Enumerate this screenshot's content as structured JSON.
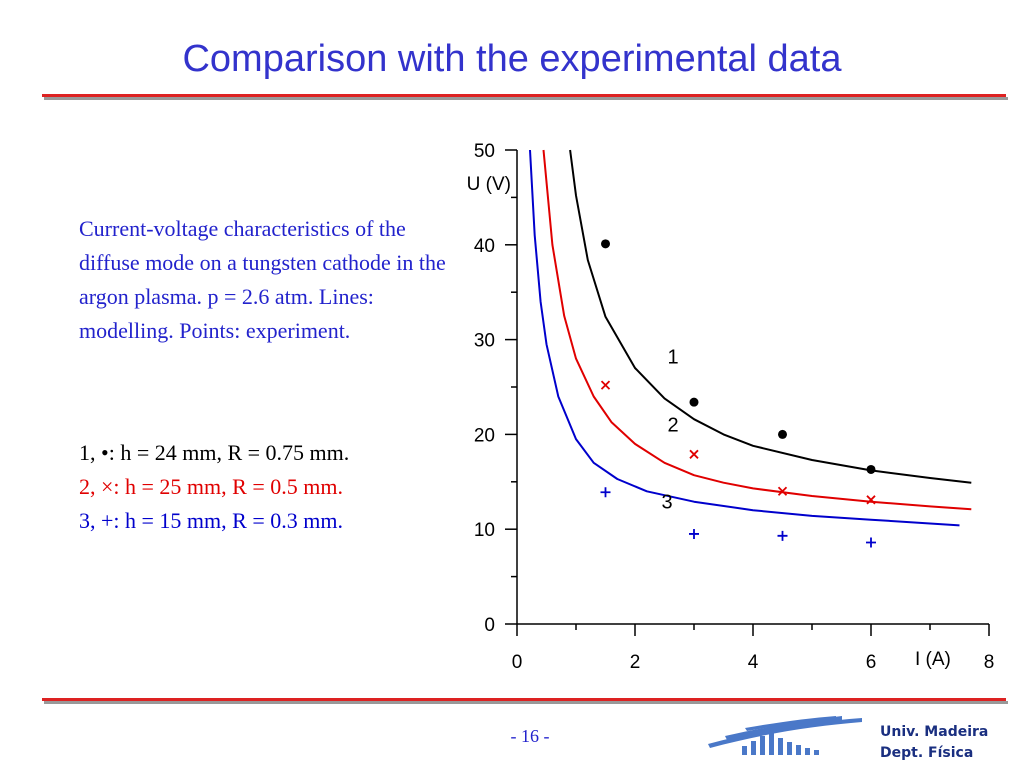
{
  "slide": {
    "title": "Comparison with the experimental data",
    "description": "Current-voltage characteristics of the diffuse mode on a tungsten cathode in the argon plasma. p = 2.6 atm. Lines: modelling. Points: experiment.",
    "legend": [
      {
        "text": "1, •:  h = 24 mm, R = 0.75 mm.",
        "color": "#000000"
      },
      {
        "text": "2, ×:  h = 25 mm, R = 0.5 mm.",
        "color": "#e00000"
      },
      {
        "text": "3, +:  h = 15 mm, R = 0.3 mm.",
        "color": "#0000cc"
      }
    ],
    "page_number": "- 16 -"
  },
  "footer": {
    "institution_line1": "Univ. Madeira",
    "institution_line2": "Dept. Física"
  },
  "colors": {
    "title": "#3333cc",
    "rule": "#dd2222",
    "series_1": "#000000",
    "series_2": "#e00000",
    "series_3": "#0000cc"
  },
  "chart_data": {
    "type": "line",
    "xlabel": "I (A)",
    "ylabel": "U (V)",
    "xlim": [
      0,
      8
    ],
    "ylim": [
      0,
      50
    ],
    "xticks": [
      0,
      2,
      4,
      6,
      8
    ],
    "yticks": [
      0,
      10,
      20,
      30,
      40,
      50
    ],
    "grid": false,
    "series": [
      {
        "name": "1",
        "color": "#000000",
        "marker": "dot",
        "line": [
          [
            0.9,
            50
          ],
          [
            1.0,
            45.2
          ],
          [
            1.2,
            38.4
          ],
          [
            1.5,
            32.4
          ],
          [
            2.0,
            27.0
          ],
          [
            2.5,
            23.8
          ],
          [
            3.0,
            21.6
          ],
          [
            3.5,
            20.0
          ],
          [
            4.0,
            18.8
          ],
          [
            5.0,
            17.3
          ],
          [
            6.0,
            16.2
          ],
          [
            7.0,
            15.4
          ],
          [
            7.7,
            14.9
          ]
        ],
        "points": [
          [
            1.5,
            40.1
          ],
          [
            3.0,
            23.4
          ],
          [
            4.5,
            20.0
          ],
          [
            6.0,
            16.3
          ]
        ]
      },
      {
        "name": "2",
        "color": "#e00000",
        "marker": "cross",
        "line": [
          [
            0.45,
            50
          ],
          [
            0.6,
            40.0
          ],
          [
            0.8,
            32.5
          ],
          [
            1.0,
            28.0
          ],
          [
            1.3,
            24.0
          ],
          [
            1.6,
            21.3
          ],
          [
            2.0,
            19.0
          ],
          [
            2.5,
            17.0
          ],
          [
            3.0,
            15.7
          ],
          [
            3.5,
            14.9
          ],
          [
            4.0,
            14.3
          ],
          [
            5.0,
            13.5
          ],
          [
            6.0,
            12.9
          ],
          [
            7.0,
            12.4
          ],
          [
            7.7,
            12.1
          ]
        ],
        "points": [
          [
            1.5,
            25.2
          ],
          [
            3.0,
            17.9
          ],
          [
            4.5,
            14.0
          ],
          [
            6.0,
            13.1
          ]
        ]
      },
      {
        "name": "3",
        "color": "#0000cc",
        "marker": "plus",
        "line": [
          [
            0.22,
            50
          ],
          [
            0.3,
            41.0
          ],
          [
            0.4,
            34.0
          ],
          [
            0.5,
            29.5
          ],
          [
            0.7,
            24.0
          ],
          [
            1.0,
            19.5
          ],
          [
            1.3,
            17.0
          ],
          [
            1.7,
            15.3
          ],
          [
            2.2,
            14.0
          ],
          [
            3.0,
            12.9
          ],
          [
            4.0,
            12.0
          ],
          [
            5.0,
            11.4
          ],
          [
            6.0,
            11.0
          ],
          [
            7.0,
            10.6
          ],
          [
            7.5,
            10.4
          ]
        ],
        "points": [
          [
            1.5,
            13.9
          ],
          [
            3.0,
            9.5
          ],
          [
            4.5,
            9.3
          ],
          [
            6.0,
            8.6
          ]
        ]
      }
    ],
    "curve_labels": [
      {
        "text": "1",
        "x": 2.55,
        "y": 27.5
      },
      {
        "text": "2",
        "x": 2.55,
        "y": 20.3
      },
      {
        "text": "3",
        "x": 2.45,
        "y": 12.2
      }
    ]
  }
}
